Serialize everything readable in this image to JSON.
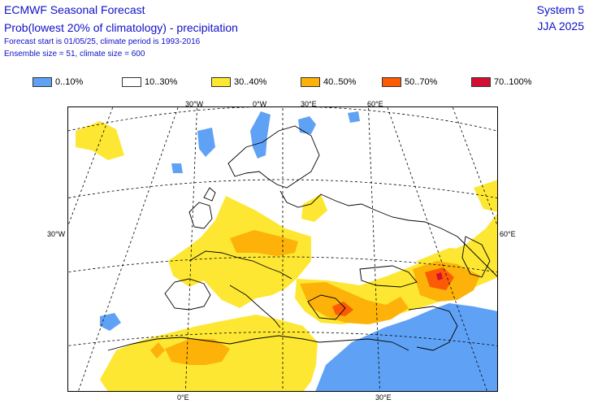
{
  "header": {
    "title": "ECMWF Seasonal Forecast",
    "subtitle": "Prob(lowest 20% of climatology) - precipitation",
    "line3": "Forecast start is 01/05/25, climate period is 1993-2016",
    "line4": "Ensemble size = 51, climate size = 600",
    "system": "System 5",
    "season": "JJA 2025"
  },
  "legend": [
    {
      "label": "0..10%",
      "color": "#5fa2f5"
    },
    {
      "label": "10..30%",
      "color": "#ffffff"
    },
    {
      "label": "30..40%",
      "color": "#fde732"
    },
    {
      "label": "40..50%",
      "color": "#fcb209"
    },
    {
      "label": "50..70%",
      "color": "#fb5b05"
    },
    {
      "label": "70..100%",
      "color": "#d50d32"
    }
  ],
  "axis_labels": {
    "top": [
      "30°W",
      "0°W",
      "30°E",
      "60°E"
    ],
    "left": "30°W",
    "right": "60°E",
    "bottom": [
      "0°E",
      "30°E"
    ]
  },
  "colors": {
    "blue": "#5fa2f5",
    "yellow": "#fde732",
    "orange": "#fcb209",
    "red_orange": "#fb5b05",
    "red": "#d50d32",
    "text": "#1010c8"
  }
}
